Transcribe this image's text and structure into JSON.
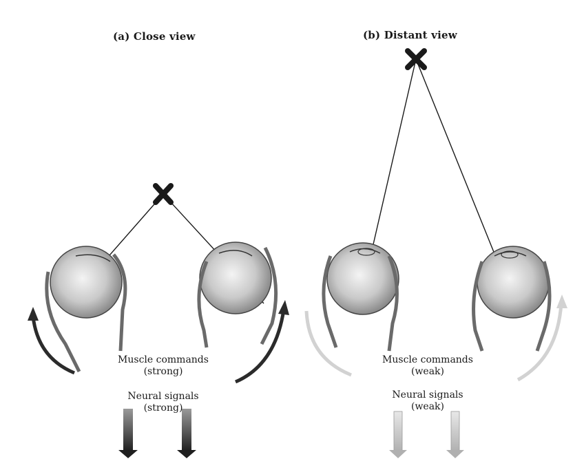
{
  "panels": {
    "close": {
      "title": "(a) Close view",
      "muscle_label": "Muscle commands",
      "muscle_strength": "(strong)",
      "neural_label": "Neural signals",
      "neural_strength": "(strong)"
    },
    "distant": {
      "title": "(b) Distant view",
      "muscle_label": "Muscle commands",
      "muscle_strength": "(weak)",
      "neural_label": "Neural signals",
      "neural_strength": "(weak)"
    }
  },
  "colors": {
    "ink": "#1a1a1a",
    "eye_shade": "#8a8a8a",
    "strong_arrow": "#2b2b2b",
    "weak_arrow": "#c4c4c4"
  },
  "icons": {
    "target": "x-mark-icon",
    "eye": "eyeball-icon",
    "signal": "down-arrow-icon"
  }
}
